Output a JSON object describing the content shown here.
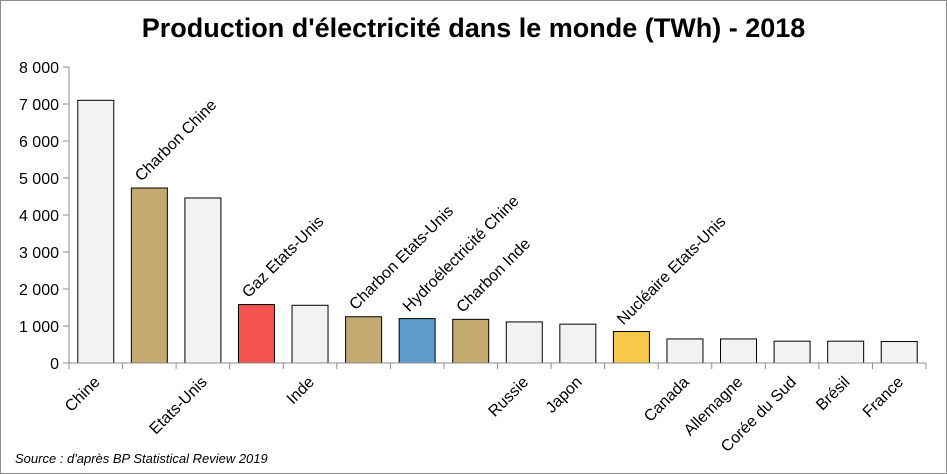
{
  "chart_data": {
    "type": "bar",
    "title": "Production d'électricité dans le monde (TWh) - 2018",
    "source": "Source : d'après BP Statistical Review 2019",
    "ylim": [
      0,
      8000
    ],
    "y_ticks": [
      "0",
      "1 000",
      "2 000",
      "3 000",
      "4 000",
      "5 000",
      "6 000",
      "7 000",
      "8 000"
    ],
    "grid": false,
    "bars": [
      {
        "category": "Chine",
        "annotation": "",
        "value": 7100,
        "color": "#f2f2f2"
      },
      {
        "category": "",
        "annotation": "Charbon Chine",
        "value": 4730,
        "color": "#c4aa70"
      },
      {
        "category": "Etats-Unis",
        "annotation": "",
        "value": 4460,
        "color": "#f2f2f2"
      },
      {
        "category": "",
        "annotation": "Gaz Etats-Unis",
        "value": 1580,
        "color": "#f5534f"
      },
      {
        "category": "Inde",
        "annotation": "",
        "value": 1560,
        "color": "#f2f2f2"
      },
      {
        "category": "",
        "annotation": "Charbon Etats-Unis",
        "value": 1250,
        "color": "#c4aa70"
      },
      {
        "category": "",
        "annotation": "Hydroélectricité Chine",
        "value": 1200,
        "color": "#5f9ccb"
      },
      {
        "category": "",
        "annotation": "Charbon Inde",
        "value": 1180,
        "color": "#c4aa70"
      },
      {
        "category": "Russie",
        "annotation": "",
        "value": 1110,
        "color": "#f2f2f2"
      },
      {
        "category": "Japon",
        "annotation": "",
        "value": 1050,
        "color": "#f2f2f2"
      },
      {
        "category": "",
        "annotation": "Nucléaire Etats-Unis",
        "value": 850,
        "color": "#f8c948"
      },
      {
        "category": "Canada",
        "annotation": "",
        "value": 650,
        "color": "#f2f2f2"
      },
      {
        "category": "Allemagne",
        "annotation": "",
        "value": 650,
        "color": "#f2f2f2"
      },
      {
        "category": "Corée du Sud",
        "annotation": "",
        "value": 590,
        "color": "#f2f2f2"
      },
      {
        "category": "Brésil",
        "annotation": "",
        "value": 590,
        "color": "#f2f2f2"
      },
      {
        "category": "France",
        "annotation": "",
        "value": 580,
        "color": "#f2f2f2"
      }
    ]
  }
}
